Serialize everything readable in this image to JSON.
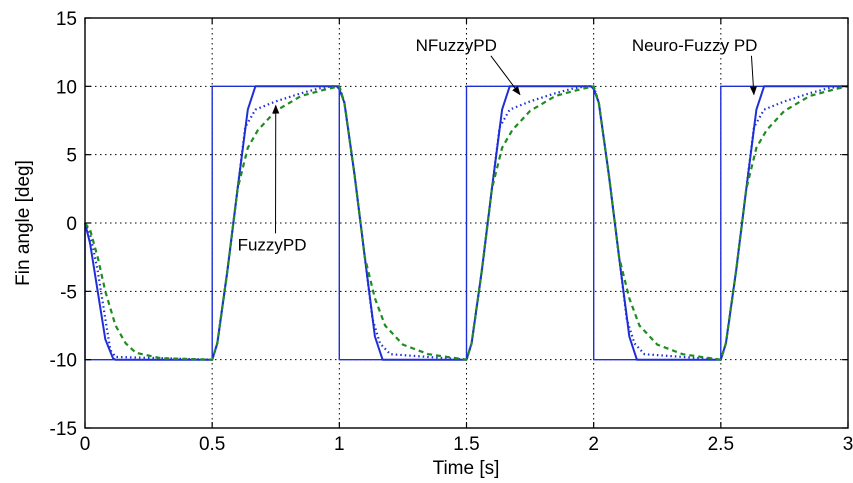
{
  "chart_data": {
    "type": "line",
    "title": "",
    "xlabel": "Time [s]",
    "ylabel": "Fin angle [deg]",
    "xlim": [
      0,
      3
    ],
    "ylim": [
      -15,
      15
    ],
    "grid": true,
    "grid_style": "dotted",
    "xticks": [
      0,
      0.5,
      1,
      1.5,
      2,
      2.5,
      3
    ],
    "xtick_labels": [
      "0",
      "0.5",
      "1",
      "1.5",
      "2",
      "2.5",
      "3"
    ],
    "yticks": [
      15,
      10,
      5,
      0,
      -5,
      -10,
      -15
    ],
    "ytick_labels": [
      "15",
      "10",
      "5",
      "0",
      "-5",
      "-10",
      "-15"
    ],
    "series": [
      {
        "key": "reference",
        "style": "solid-thin",
        "color": "#1f2fd6",
        "x": [
          0,
          0,
          0.5,
          0.5,
          1,
          1,
          1.5,
          1.5,
          2,
          2,
          2.5,
          2.5,
          3
        ],
        "y": [
          0,
          -10,
          -10,
          10,
          10,
          -10,
          -10,
          10,
          10,
          -10,
          -10,
          10,
          10
        ]
      },
      {
        "name": "Neuro-Fuzzy PD",
        "style": "solid",
        "color": "#1f2fd6",
        "x": [
          0,
          0.02,
          0.05,
          0.08,
          0.11,
          0.12,
          0.5,
          0.52,
          0.56,
          0.6,
          0.64,
          0.67,
          0.99,
          1.0,
          1.02,
          1.06,
          1.1,
          1.14,
          1.17,
          1.5,
          1.52,
          1.56,
          1.6,
          1.64,
          1.67,
          1.99,
          2.0,
          2.02,
          2.06,
          2.1,
          2.14,
          2.17,
          2.5,
          2.52,
          2.56,
          2.6,
          2.64,
          2.67,
          3.0
        ],
        "y": [
          0,
          -1.5,
          -5,
          -8.5,
          -9.9,
          -10,
          -10,
          -8.8,
          -3.5,
          2.5,
          8.3,
          10,
          10,
          9.8,
          8.8,
          3.5,
          -2.5,
          -8.3,
          -10,
          -10,
          -8.8,
          -3.5,
          2.5,
          8.3,
          10,
          10,
          9.8,
          8.8,
          3.5,
          -2.5,
          -8.3,
          -10,
          -10,
          -8.8,
          -3.5,
          2.5,
          8.3,
          10,
          10
        ]
      },
      {
        "name": "NFuzzyPD",
        "style": "dotted",
        "color": "#1f2fd6",
        "x": [
          0,
          0.02,
          0.05,
          0.08,
          0.1,
          0.12,
          0.5,
          0.52,
          0.56,
          0.6,
          0.63,
          0.67,
          0.75,
          0.85,
          0.92,
          0.97,
          1.0,
          1.02,
          1.06,
          1.1,
          1.13,
          1.16,
          1.2,
          1.5,
          1.52,
          1.56,
          1.6,
          1.63,
          1.67,
          1.75,
          1.85,
          1.92,
          1.97,
          2.0,
          2.02,
          2.06,
          2.1,
          2.13,
          2.16,
          2.2,
          2.5,
          2.52,
          2.56,
          2.6,
          2.63,
          2.67,
          2.75,
          2.85,
          2.92,
          2.97,
          3.0
        ],
        "y": [
          0,
          -0.8,
          -3.5,
          -7,
          -9.3,
          -9.8,
          -10,
          -8.8,
          -3.5,
          2.5,
          7,
          8.3,
          8.9,
          9.5,
          9.85,
          10,
          10,
          8.8,
          3.5,
          -2.5,
          -7,
          -8.8,
          -9.6,
          -10,
          -8.8,
          -3.5,
          2.5,
          7,
          8.3,
          8.9,
          9.5,
          9.85,
          10,
          10,
          8.8,
          3.5,
          -2.5,
          -7,
          -8.8,
          -9.6,
          -10,
          -8.8,
          -3.5,
          2.5,
          7,
          8.3,
          8.9,
          9.5,
          9.85,
          10,
          10
        ]
      },
      {
        "name": "FuzzyPD",
        "style": "dashed",
        "color": "#1e8c1e",
        "x": [
          0,
          0.02,
          0.05,
          0.08,
          0.12,
          0.16,
          0.2,
          0.3,
          0.5,
          0.52,
          0.56,
          0.6,
          0.64,
          0.68,
          0.75,
          0.85,
          0.95,
          1.0,
          1.02,
          1.06,
          1.1,
          1.14,
          1.18,
          1.25,
          1.35,
          1.5,
          1.52,
          1.56,
          1.6,
          1.64,
          1.68,
          1.75,
          1.85,
          1.95,
          2.0,
          2.02,
          2.06,
          2.1,
          2.14,
          2.18,
          2.25,
          2.35,
          2.5,
          2.52,
          2.56,
          2.6,
          2.64,
          2.68,
          2.75,
          2.85,
          2.95,
          3.0
        ],
        "y": [
          0,
          -0.5,
          -2.5,
          -5,
          -7.5,
          -8.8,
          -9.5,
          -9.9,
          -10,
          -8.8,
          -3.5,
          2.5,
          5.5,
          6.8,
          8.2,
          9.3,
          9.8,
          10,
          8.8,
          3.5,
          -2.5,
          -5.5,
          -7.5,
          -8.9,
          -9.6,
          -10,
          -8.8,
          -3.5,
          2.5,
          5.5,
          6.8,
          8.2,
          9.3,
          9.8,
          10,
          8.8,
          3.5,
          -2.5,
          -5.5,
          -7.5,
          -8.9,
          -9.6,
          -10,
          -8.8,
          -3.5,
          2.5,
          5.5,
          6.8,
          8.2,
          9.3,
          9.8,
          10
        ]
      }
    ],
    "annotations": [
      {
        "text": "NFuzzyPD",
        "text_x": 1.3,
        "text_y": 12.6,
        "arrow_to_x": 1.71,
        "arrow_to_y": 9.4
      },
      {
        "text": "Neuro-Fuzzy PD",
        "text_x": 2.15,
        "text_y": 12.6,
        "arrow_to_x": 2.63,
        "arrow_to_y": 9.4
      },
      {
        "text": "FuzzyPD",
        "text_x": 0.6,
        "text_y": -2.0,
        "arrow_to_x": 0.75,
        "arrow_to_y": 8.6
      }
    ]
  }
}
